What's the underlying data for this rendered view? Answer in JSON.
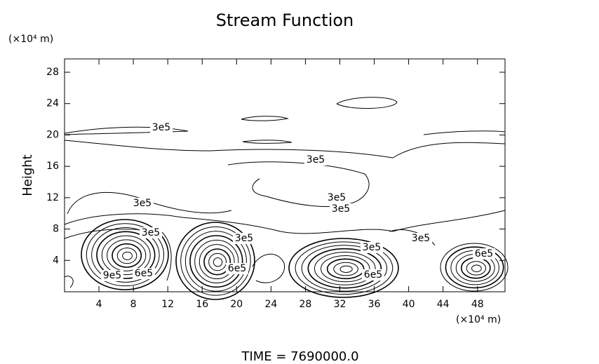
{
  "chart_data": {
    "type": "contour",
    "title": "Stream Function",
    "y_unit": "(×10⁴ m)",
    "x_unit": "(×10⁴ m)",
    "y_label": "Height",
    "footer": "TIME = 7690000.0",
    "xlim": [
      0,
      51.2
    ],
    "ylim": [
      0,
      29.7
    ],
    "xticks": [
      4,
      8,
      12,
      16,
      20,
      24,
      28,
      32,
      36,
      40,
      44,
      48
    ],
    "yticks": [
      4,
      8,
      12,
      16,
      20,
      24,
      28
    ],
    "contour_labels": [
      "3e5",
      "3e5",
      "3e5",
      "3e5",
      "3e5",
      "3e5",
      "3e5",
      "3e5",
      "3e5",
      "6e5",
      "6e5",
      "6e5",
      "6e5",
      "9e5"
    ],
    "color": "#000000"
  }
}
